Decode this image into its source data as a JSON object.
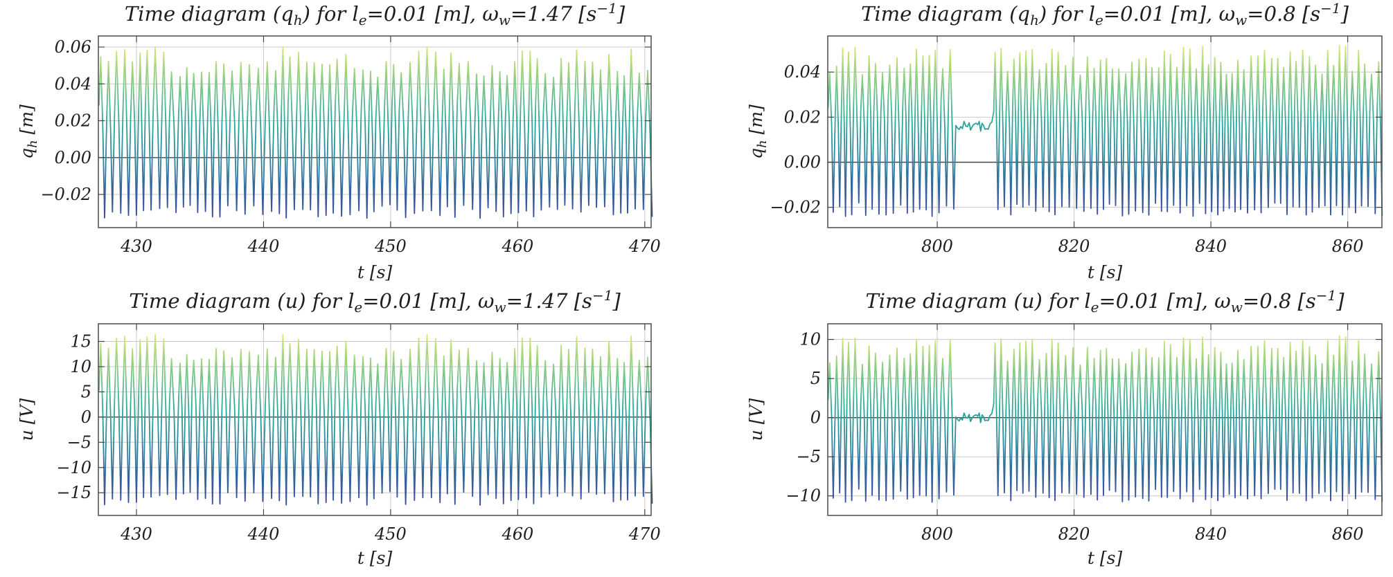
{
  "chart_data": [
    {
      "type": "line",
      "title": "Time diagram (qₕ) for lₑ=0.01 [m], ωw=1.47 [s⁻¹]",
      "title_parts": {
        "lead": "Time diagram (q",
        "sub1": "h",
        "mid1": ") for l",
        "sub2": "e",
        "mid2": "=0.01 [m], ω",
        "sub3": "w",
        "mid3": "=1.47 [s",
        "sup": "−1",
        "tail": "]"
      },
      "xlabel": "t [s]",
      "ylabel": "qₕ [m]",
      "ylabel_parts": {
        "main": "q",
        "sub": "h",
        "unit": " [m]"
      },
      "xlim": [
        427,
        470.5
      ],
      "ylim": [
        -0.038,
        0.066
      ],
      "xticks": [
        430,
        440,
        450,
        460,
        470
      ],
      "xtick_labels": [
        "430",
        "440",
        "450",
        "460",
        "470"
      ],
      "yticks": [
        -0.02,
        0.0,
        0.02,
        0.04,
        0.06
      ],
      "ytick_labels": [
        "−0.02",
        "0.00",
        "0.02",
        "0.04",
        "0.06"
      ],
      "grid": true,
      "colormap": "yellow-green-blue by value",
      "series": [
        {
          "name": "q_h",
          "period": 0.62,
          "quiet_level": 0.014,
          "amp_low": -0.033,
          "amp_high": 0.06,
          "burst_fraction": 0.82,
          "seed": 11
        }
      ]
    },
    {
      "type": "line",
      "title": "Time diagram (qₕ) for lₑ=0.01 [m], ωw=0.8 [s⁻¹]",
      "title_parts": {
        "lead": "Time diagram (q",
        "sub1": "h",
        "mid1": ") for l",
        "sub2": "e",
        "mid2": "=0.01 [m], ω",
        "sub3": "w",
        "mid3": "=0.8 [s",
        "sup": "−1",
        "tail": "]"
      },
      "xlabel": "t [s]",
      "ylabel": "qₕ [m]",
      "ylabel_parts": {
        "main": "q",
        "sub": "h",
        "unit": " [m]"
      },
      "xlim": [
        784,
        865
      ],
      "ylim": [
        -0.029,
        0.056
      ],
      "xticks": [
        800,
        820,
        840,
        860
      ],
      "xtick_labels": [
        "800",
        "820",
        "840",
        "860"
      ],
      "yticks": [
        -0.02,
        0.0,
        0.02,
        0.04
      ],
      "ytick_labels": [
        "−0.02",
        "0.00",
        "0.02",
        "0.04"
      ],
      "grid": true,
      "colormap": "yellow-green-blue by value",
      "series": [
        {
          "name": "q_h",
          "period": 0.95,
          "quiet_level": 0.016,
          "amp_low": -0.024,
          "amp_high": 0.052,
          "burst_fraction": 0.62,
          "seed": 29
        }
      ]
    },
    {
      "type": "line",
      "title": "Time diagram (u) for lₑ=0.01 [m], ωw=1.47 [s⁻¹]",
      "title_parts": {
        "lead": "Time diagram (u",
        "sub1": "",
        "mid1": ") for l",
        "sub2": "e",
        "mid2": "=0.01 [m], ω",
        "sub3": "w",
        "mid3": "=1.47 [s",
        "sup": "−1",
        "tail": "]"
      },
      "xlabel": "t [s]",
      "ylabel": "u [V]",
      "ylabel_parts": {
        "main": "u",
        "sub": "",
        "unit": " [V]"
      },
      "xlim": [
        427,
        470.5
      ],
      "ylim": [
        -19.5,
        18.5
      ],
      "xticks": [
        430,
        440,
        450,
        460,
        470
      ],
      "xtick_labels": [
        "430",
        "440",
        "450",
        "460",
        "470"
      ],
      "yticks": [
        -15,
        -10,
        -5,
        0,
        5,
        10,
        15
      ],
      "ytick_labels": [
        "−15",
        "−10",
        "−5",
        "0",
        "5",
        "10",
        "15"
      ],
      "grid": true,
      "colormap": "yellow-green-blue by value",
      "series": [
        {
          "name": "u",
          "period": 0.62,
          "quiet_level": 0,
          "amp_low": -17.5,
          "amp_high": 16.5,
          "burst_fraction": 0.82,
          "seed": 11
        }
      ]
    },
    {
      "type": "line",
      "title": "Time diagram (u) for lₑ=0.01 [m], ωw=0.8 [s⁻¹]",
      "title_parts": {
        "lead": "Time diagram (u",
        "sub1": "",
        "mid1": ") for l",
        "sub2": "e",
        "mid2": "=0.01 [m], ω",
        "sub3": "w",
        "mid3": "=0.8 [s",
        "sup": "−1",
        "tail": "]"
      },
      "xlabel": "t [s]",
      "ylabel": "u [V]",
      "ylabel_parts": {
        "main": "u",
        "sub": "",
        "unit": " [V]"
      },
      "xlim": [
        784,
        865
      ],
      "ylim": [
        -12.5,
        12
      ],
      "xticks": [
        800,
        820,
        840,
        860
      ],
      "xtick_labels": [
        "800",
        "820",
        "840",
        "860"
      ],
      "yticks": [
        -10,
        -5,
        0,
        5,
        10
      ],
      "ytick_labels": [
        "−10",
        "−5",
        "0",
        "5",
        "10"
      ],
      "grid": true,
      "colormap": "yellow-green-blue by value",
      "series": [
        {
          "name": "u",
          "period": 0.95,
          "quiet_level": 0,
          "amp_low": -10.8,
          "amp_high": 10.5,
          "burst_fraction": 0.62,
          "seed": 29
        }
      ]
    }
  ],
  "colors": {
    "low": "#3b3f9e",
    "mid": "#29a79a",
    "high": "#f2f26a",
    "grid": "#c8c8c8",
    "text": "#1e1e1e"
  }
}
